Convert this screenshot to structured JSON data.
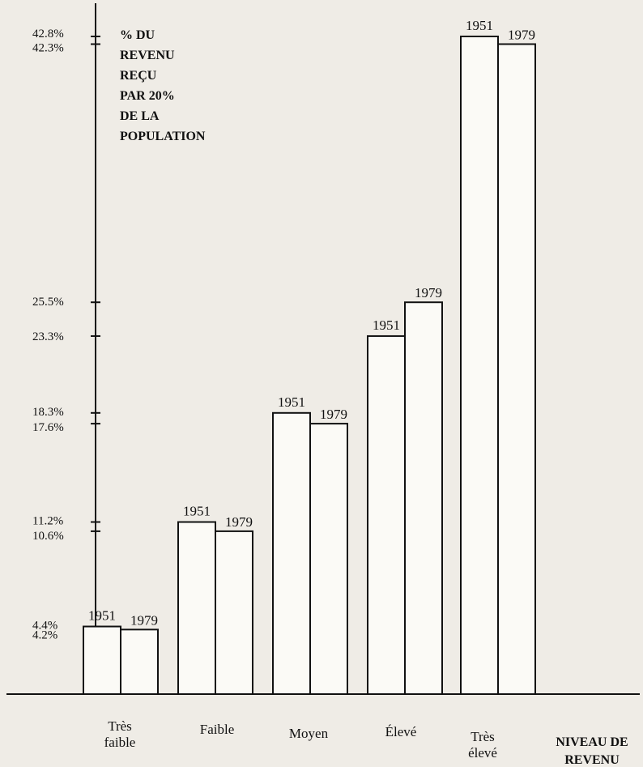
{
  "chart_data": {
    "type": "bar",
    "categories": [
      [
        "Très",
        "faible"
      ],
      [
        "Faible"
      ],
      [
        "Moyen"
      ],
      [
        "Élevé"
      ],
      [
        "Très",
        "élevé"
      ]
    ],
    "series": [
      {
        "name": "1951",
        "values": [
          4.4,
          11.2,
          18.3,
          23.3,
          42.8
        ]
      },
      {
        "name": "1979",
        "values": [
          4.2,
          10.6,
          17.6,
          25.5,
          42.3
        ]
      }
    ],
    "y_ticks": [
      {
        "value": 42.8,
        "label": "42.8%"
      },
      {
        "value": 42.3,
        "label": "42.3%"
      },
      {
        "value": 25.5,
        "label": "25.5%"
      },
      {
        "value": 23.3,
        "label": "23.3%"
      },
      {
        "value": 18.3,
        "label": "18.3%"
      },
      {
        "value": 17.6,
        "label": "17.6%"
      },
      {
        "value": 11.2,
        "label": "11.2%"
      },
      {
        "value": 10.6,
        "label": "10.6%"
      },
      {
        "value": 4.4,
        "label": "4.4%"
      },
      {
        "value": 4.2,
        "label": "4.2%"
      }
    ],
    "ylabel": [
      "% DU",
      "REVENU",
      "REÇU",
      "PAR 20%",
      "DE LA",
      "POPULATION"
    ],
    "xlabel": [
      "NIVEAU DE",
      "REVENU"
    ],
    "ylim": [
      0,
      42.8
    ],
    "grid": false,
    "bar_labels_shown": true
  }
}
